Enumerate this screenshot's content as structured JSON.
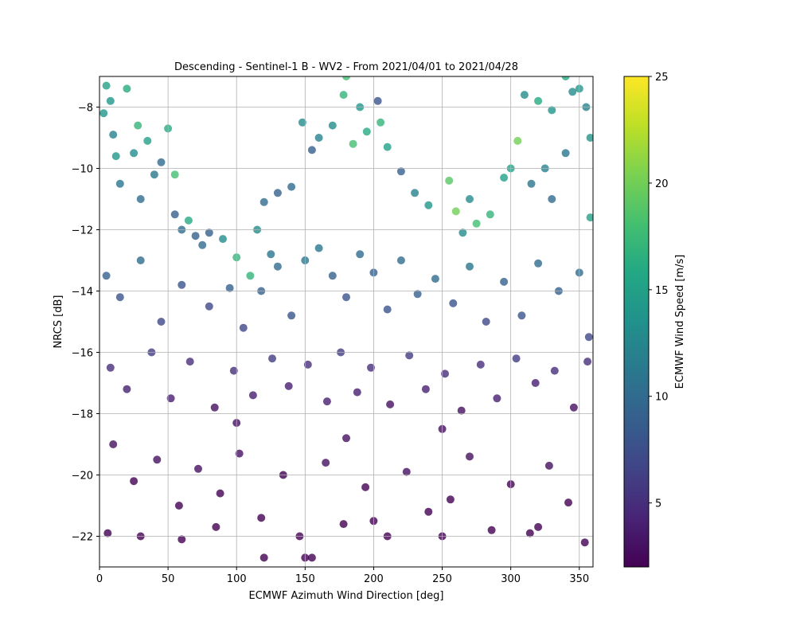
{
  "chart_data": {
    "type": "scatter",
    "title": "Descending - Sentinel-1 B - WV2 - From 2021/04/01 to 2021/04/28",
    "xlabel": "ECMWF Azimuth Wind Direction [deg]",
    "ylabel": "NRCS [dB]",
    "xlim": [
      0,
      360
    ],
    "ylim": [
      -23,
      -7
    ],
    "xticks": [
      0,
      50,
      100,
      150,
      200,
      250,
      300,
      350
    ],
    "yticks": [
      -22,
      -20,
      -18,
      -16,
      -14,
      -12,
      -10,
      -8
    ],
    "xtick_labels": [
      "0",
      "50",
      "100",
      "150",
      "200",
      "250",
      "300",
      "350"
    ],
    "ytick_labels": [
      "−22",
      "−20",
      "−18",
      "−16",
      "−14",
      "−12",
      "−10",
      "−8"
    ],
    "grid": true,
    "colormap": "viridis",
    "marker_alpha": 0.8,
    "colorbar": {
      "label": "ECMWF Wind Speed [m/s]",
      "range": [
        2,
        25
      ],
      "ticks": [
        5,
        10,
        15,
        20,
        25
      ],
      "tick_labels": [
        "5",
        "10",
        "15",
        "20",
        "25"
      ]
    },
    "points": {
      "fields": [
        "x",
        "y",
        "wind_speed"
      ],
      "values": [
        [
          5,
          -7.3,
          15
        ],
        [
          8,
          -7.8,
          14
        ],
        [
          3,
          -8.2,
          14
        ],
        [
          20,
          -7.4,
          16
        ],
        [
          35,
          -9.1,
          15
        ],
        [
          10,
          -8.9,
          12
        ],
        [
          25,
          -9.5,
          13
        ],
        [
          40,
          -10.2,
          11
        ],
        [
          50,
          -8.7,
          16
        ],
        [
          45,
          -9.8,
          10
        ],
        [
          15,
          -10.5,
          11
        ],
        [
          30,
          -11.0,
          10
        ],
        [
          55,
          -11.5,
          9
        ],
        [
          60,
          -12.0,
          10
        ],
        [
          70,
          -12.2,
          9
        ],
        [
          75,
          -12.5,
          10
        ],
        [
          80,
          -12.1,
          9
        ],
        [
          90,
          -12.3,
          13
        ],
        [
          100,
          -12.9,
          17
        ],
        [
          65,
          -11.7,
          16
        ],
        [
          110,
          -13.5,
          17
        ],
        [
          115,
          -12.0,
          13
        ],
        [
          120,
          -11.1,
          10
        ],
        [
          125,
          -12.8,
          11
        ],
        [
          130,
          -10.8,
          9
        ],
        [
          140,
          -10.6,
          10
        ],
        [
          148,
          -8.5,
          13
        ],
        [
          155,
          -9.4,
          9
        ],
        [
          160,
          -9.0,
          12
        ],
        [
          170,
          -8.6,
          13
        ],
        [
          180,
          -7.0,
          18
        ],
        [
          178,
          -7.6,
          17
        ],
        [
          190,
          -8.0,
          14
        ],
        [
          195,
          -8.8,
          16
        ],
        [
          203,
          -7.8,
          8
        ],
        [
          205,
          -8.5,
          17
        ],
        [
          210,
          -9.3,
          15
        ],
        [
          220,
          -10.1,
          9
        ],
        [
          230,
          -10.8,
          12
        ],
        [
          240,
          -11.2,
          14
        ],
        [
          255,
          -10.4,
          19
        ],
        [
          260,
          -11.4,
          20
        ],
        [
          270,
          -11.0,
          13
        ],
        [
          275,
          -11.8,
          18
        ],
        [
          285,
          -11.5,
          17
        ],
        [
          295,
          -10.3,
          15
        ],
        [
          300,
          -10.0,
          15
        ],
        [
          305,
          -9.1,
          20
        ],
        [
          310,
          -7.6,
          13
        ],
        [
          320,
          -7.8,
          16
        ],
        [
          330,
          -8.1,
          14
        ],
        [
          340,
          -7.0,
          16
        ],
        [
          345,
          -7.5,
          13
        ],
        [
          350,
          -7.4,
          14
        ],
        [
          355,
          -8.0,
          12
        ],
        [
          358,
          -9.0,
          14
        ],
        [
          340,
          -9.5,
          11
        ],
        [
          325,
          -10.0,
          12
        ],
        [
          315,
          -10.5,
          11
        ],
        [
          330,
          -11.0,
          10
        ],
        [
          358,
          -11.6,
          15
        ],
        [
          12,
          -9.6,
          14
        ],
        [
          28,
          -8.6,
          17
        ],
        [
          55,
          -10.2,
          18
        ],
        [
          185,
          -9.2,
          18
        ],
        [
          265,
          -12.1,
          13
        ],
        [
          5,
          -13.5,
          9
        ],
        [
          15,
          -14.2,
          8
        ],
        [
          30,
          -13.0,
          10
        ],
        [
          45,
          -15.0,
          7
        ],
        [
          60,
          -13.8,
          8
        ],
        [
          80,
          -14.5,
          7
        ],
        [
          95,
          -13.9,
          9
        ],
        [
          105,
          -15.2,
          7
        ],
        [
          118,
          -14.0,
          9
        ],
        [
          130,
          -13.2,
          10
        ],
        [
          140,
          -14.8,
          8
        ],
        [
          150,
          -13.0,
          11
        ],
        [
          160,
          -12.6,
          11
        ],
        [
          170,
          -13.5,
          9
        ],
        [
          180,
          -14.2,
          8
        ],
        [
          190,
          -12.8,
          10
        ],
        [
          200,
          -13.4,
          9
        ],
        [
          210,
          -14.6,
          8
        ],
        [
          220,
          -13.0,
          10
        ],
        [
          232,
          -14.1,
          9
        ],
        [
          245,
          -13.6,
          10
        ],
        [
          258,
          -14.4,
          8
        ],
        [
          270,
          -13.2,
          11
        ],
        [
          282,
          -15.0,
          7
        ],
        [
          295,
          -13.7,
          9
        ],
        [
          308,
          -14.8,
          8
        ],
        [
          320,
          -13.1,
          10
        ],
        [
          335,
          -14.0,
          9
        ],
        [
          350,
          -13.4,
          10
        ],
        [
          357,
          -15.5,
          7
        ],
        [
          8,
          -16.5,
          5
        ],
        [
          20,
          -17.2,
          4
        ],
        [
          38,
          -16.0,
          6
        ],
        [
          52,
          -17.5,
          4
        ],
        [
          66,
          -16.3,
          5
        ],
        [
          84,
          -17.8,
          3
        ],
        [
          98,
          -16.6,
          5
        ],
        [
          112,
          -17.4,
          4
        ],
        [
          126,
          -16.2,
          6
        ],
        [
          138,
          -17.1,
          4
        ],
        [
          152,
          -16.4,
          5
        ],
        [
          166,
          -17.6,
          4
        ],
        [
          176,
          -16.0,
          6
        ],
        [
          188,
          -17.3,
          4
        ],
        [
          198,
          -16.5,
          5
        ],
        [
          212,
          -17.7,
          3
        ],
        [
          226,
          -16.1,
          6
        ],
        [
          238,
          -17.2,
          4
        ],
        [
          252,
          -16.7,
          5
        ],
        [
          264,
          -17.9,
          3
        ],
        [
          278,
          -16.4,
          5
        ],
        [
          290,
          -17.5,
          4
        ],
        [
          304,
          -16.2,
          6
        ],
        [
          318,
          -17.0,
          4
        ],
        [
          332,
          -16.6,
          5
        ],
        [
          346,
          -17.8,
          3
        ],
        [
          356,
          -16.3,
          5
        ],
        [
          10,
          -19.0,
          3
        ],
        [
          25,
          -20.2,
          2
        ],
        [
          42,
          -19.5,
          3
        ],
        [
          58,
          -21.0,
          2
        ],
        [
          72,
          -19.8,
          3
        ],
        [
          88,
          -20.6,
          2
        ],
        [
          102,
          -19.3,
          3
        ],
        [
          118,
          -21.4,
          2
        ],
        [
          134,
          -20.0,
          2
        ],
        [
          146,
          -22.0,
          2
        ],
        [
          150,
          -22.7,
          2
        ],
        [
          155,
          -22.7,
          2
        ],
        [
          120,
          -22.7,
          2
        ],
        [
          165,
          -19.6,
          3
        ],
        [
          178,
          -21.6,
          2
        ],
        [
          194,
          -20.4,
          2
        ],
        [
          210,
          -22.0,
          2
        ],
        [
          224,
          -19.9,
          3
        ],
        [
          240,
          -21.2,
          2
        ],
        [
          256,
          -20.8,
          2
        ],
        [
          270,
          -19.4,
          3
        ],
        [
          286,
          -21.8,
          2
        ],
        [
          300,
          -20.3,
          2
        ],
        [
          314,
          -21.9,
          2
        ],
        [
          328,
          -19.7,
          3
        ],
        [
          342,
          -20.9,
          2
        ],
        [
          354,
          -22.2,
          2
        ],
        [
          6,
          -21.9,
          2
        ],
        [
          30,
          -22.0,
          2
        ],
        [
          60,
          -22.1,
          2
        ],
        [
          85,
          -21.7,
          2
        ],
        [
          200,
          -21.5,
          2
        ],
        [
          250,
          -22.0,
          2
        ],
        [
          320,
          -21.7,
          2
        ],
        [
          250,
          -18.5,
          3
        ],
        [
          100,
          -18.3,
          3
        ],
        [
          180,
          -18.8,
          3
        ]
      ]
    }
  }
}
